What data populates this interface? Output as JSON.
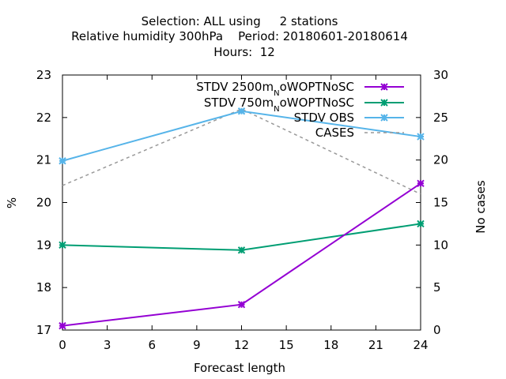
{
  "chart_data": {
    "type": "line",
    "title_lines": [
      "Selection: ALL using     2 stations",
      "Relative humidity 300hPa    Period: 20180601-20180614",
      "Hours:  12"
    ],
    "xlabel": "Forecast length",
    "ylabel": "%",
    "y2label": "No cases",
    "xlim": [
      0,
      24
    ],
    "ylim": [
      17,
      23
    ],
    "y2lim": [
      0,
      30
    ],
    "x_ticks": [
      "0",
      "3",
      "6",
      "9",
      "12",
      "15",
      "18",
      "21",
      "24"
    ],
    "y_ticks": [
      "17",
      "18",
      "19",
      "20",
      "21",
      "22",
      "23"
    ],
    "y2_ticks": [
      "0",
      "5",
      "10",
      "15",
      "20",
      "25",
      "30"
    ],
    "grid": false,
    "legend_position": "top-right",
    "series": [
      {
        "name": "STDV 2500m",
        "name_sub": "N",
        "name_rest": "oWOPTNoSC",
        "color": "#9400d3",
        "x": [
          0,
          12,
          24
        ],
        "values": [
          17.1,
          17.6,
          20.45
        ],
        "axis": "y1"
      },
      {
        "name": "STDV 750m",
        "name_sub": "N",
        "name_rest": "oWOPTNoSC",
        "color": "#009e73",
        "x": [
          0,
          12,
          24
        ],
        "values": [
          19.0,
          18.88,
          19.5
        ],
        "axis": "y1"
      },
      {
        "name": "STDV OBS",
        "name_sub": "",
        "name_rest": "",
        "color": "#56b4e9",
        "x": [
          0,
          12,
          24
        ],
        "values": [
          20.98,
          22.15,
          21.55
        ],
        "axis": "y1"
      },
      {
        "name": "CASES",
        "name_sub": "",
        "name_rest": "",
        "color": "#999999",
        "dashed": true,
        "x": [
          0,
          12,
          24
        ],
        "values": [
          17,
          26,
          16
        ],
        "axis": "y2"
      }
    ]
  }
}
